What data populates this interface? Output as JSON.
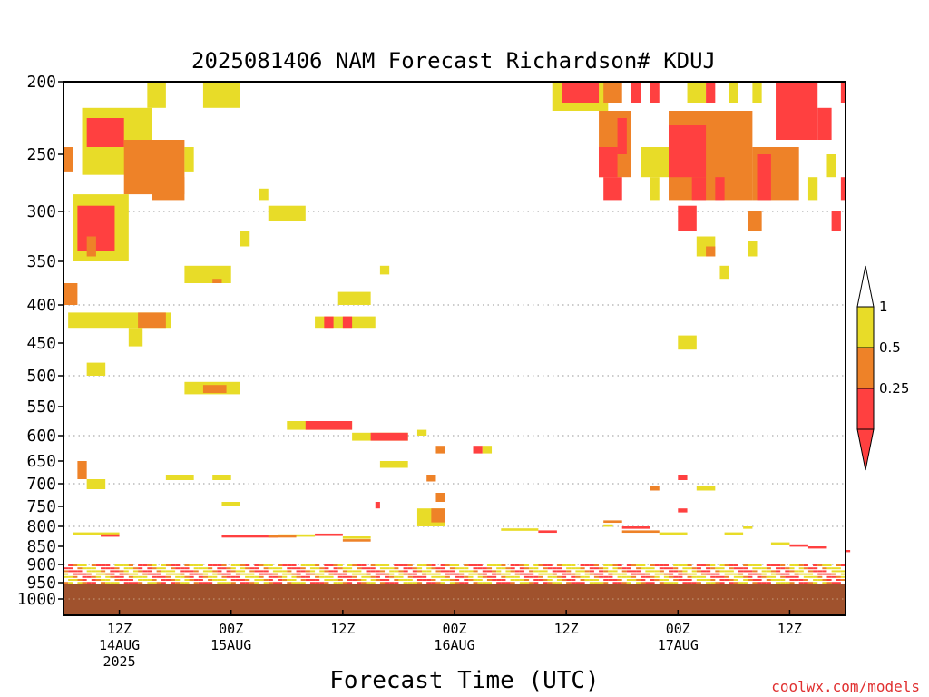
{
  "chart_data": {
    "type": "heatmap",
    "title": "2025081406 NAM Forecast Richardson# KDUJ",
    "xlabel": "Forecast Time (UTC)",
    "credit": "coolwx.com/models",
    "y_axis": {
      "scale": "pressure",
      "range": [
        200,
        1050
      ],
      "ticks": [
        200,
        250,
        300,
        350,
        400,
        450,
        500,
        550,
        600,
        650,
        700,
        750,
        800,
        850,
        900,
        950,
        1000
      ],
      "tick_labels": [
        "200",
        "250",
        "300",
        "350",
        "400",
        "450",
        "500",
        "550",
        "600",
        "650",
        "700",
        "750",
        "800",
        "850",
        "900",
        "950",
        "1000"
      ],
      "gridlines": [
        300,
        400,
        500,
        600,
        700,
        800,
        900,
        1000
      ]
    },
    "x_axis": {
      "unit": "forecast hours from 2025081406",
      "range": [
        0,
        84
      ],
      "ticks": [
        {
          "hour": 6,
          "line1": "12Z",
          "line2": "14AUG",
          "line3": "2025"
        },
        {
          "hour": 18,
          "line1": "00Z",
          "line2": "15AUG",
          "line3": ""
        },
        {
          "hour": 30,
          "line1": "12Z",
          "line2": "",
          "line3": ""
        },
        {
          "hour": 42,
          "line1": "00Z",
          "line2": "16AUG",
          "line3": ""
        },
        {
          "hour": 54,
          "line1": "12Z",
          "line2": "",
          "line3": ""
        },
        {
          "hour": 66,
          "line1": "00Z",
          "line2": "17AUG",
          "line3": ""
        },
        {
          "hour": 78,
          "line1": "12Z",
          "line2": "",
          "line3": ""
        }
      ]
    },
    "colorbar": {
      "levels": [
        {
          "label": "1",
          "color": "#e8dc28"
        },
        {
          "label": "0.5",
          "color": "#ee8228"
        },
        {
          "label": "0.25",
          "color": "#ff4040"
        }
      ],
      "top_cap_color": "#ffffff",
      "bottom_cap_color": "#ff4040",
      "band_colors": [
        "#e8dc28",
        "#ee8228",
        "#ff4040"
      ]
    },
    "terrain": {
      "pressure_top": 955,
      "color": "#a0522d"
    },
    "categories": {
      "y": "#e8dc28",
      "o": "#ee8228",
      "r": "#ff4040"
    },
    "patches": [
      {
        "h0": 9,
        "h1": 11,
        "p0": 200,
        "p1": 218,
        "c": "y"
      },
      {
        "h0": 15,
        "h1": 19,
        "p0": 200,
        "p1": 218,
        "c": "y"
      },
      {
        "h0": 2,
        "h1": 9.5,
        "p0": 218,
        "p1": 268,
        "c": "y"
      },
      {
        "h0": 2.5,
        "h1": 6.5,
        "p0": 225,
        "p1": 245,
        "c": "r"
      },
      {
        "h0": 6.5,
        "h1": 13,
        "p0": 240,
        "p1": 285,
        "c": "o"
      },
      {
        "h0": 9.5,
        "h1": 13,
        "p0": 270,
        "p1": 290,
        "c": "o"
      },
      {
        "h0": 13,
        "h1": 14,
        "p0": 245,
        "p1": 265,
        "c": "y"
      },
      {
        "h0": 0,
        "h1": 1,
        "p0": 245,
        "p1": 265,
        "c": "o"
      },
      {
        "h0": 1,
        "h1": 7,
        "p0": 285,
        "p1": 350,
        "c": "y"
      },
      {
        "h0": 1.5,
        "h1": 5.5,
        "p0": 295,
        "p1": 340,
        "c": "r"
      },
      {
        "h0": 2.5,
        "h1": 3.5,
        "p0": 325,
        "p1": 345,
        "c": "o"
      },
      {
        "h0": 21,
        "h1": 22,
        "p0": 280,
        "p1": 290,
        "c": "y"
      },
      {
        "h0": 22,
        "h1": 26,
        "p0": 295,
        "p1": 310,
        "c": "y"
      },
      {
        "h0": 19,
        "h1": 20,
        "p0": 320,
        "p1": 335,
        "c": "y"
      },
      {
        "h0": 13,
        "h1": 18,
        "p0": 355,
        "p1": 375,
        "c": "y"
      },
      {
        "h0": 16,
        "h1": 17,
        "p0": 370,
        "p1": 375,
        "c": "o"
      },
      {
        "h0": 0,
        "h1": 1.5,
        "p0": 375,
        "p1": 400,
        "c": "o"
      },
      {
        "h0": 29.5,
        "h1": 33,
        "p0": 385,
        "p1": 400,
        "c": "y"
      },
      {
        "h0": 34,
        "h1": 35,
        "p0": 355,
        "p1": 365,
        "c": "y"
      },
      {
        "h0": 0.5,
        "h1": 11.5,
        "p0": 410,
        "p1": 430,
        "c": "y"
      },
      {
        "h0": 8,
        "h1": 11,
        "p0": 410,
        "p1": 430,
        "c": "o"
      },
      {
        "h0": 7,
        "h1": 8.5,
        "p0": 430,
        "p1": 455,
        "c": "y"
      },
      {
        "h0": 27,
        "h1": 33.5,
        "p0": 415,
        "p1": 430,
        "c": "y"
      },
      {
        "h0": 28,
        "h1": 29,
        "p0": 415,
        "p1": 430,
        "c": "r"
      },
      {
        "h0": 30,
        "h1": 31,
        "p0": 415,
        "p1": 430,
        "c": "r"
      },
      {
        "h0": 2.5,
        "h1": 4.5,
        "p0": 480,
        "p1": 500,
        "c": "y"
      },
      {
        "h0": 13,
        "h1": 19,
        "p0": 510,
        "p1": 530,
        "c": "y"
      },
      {
        "h0": 15,
        "h1": 17.5,
        "p0": 515,
        "p1": 528,
        "c": "o"
      },
      {
        "h0": 24,
        "h1": 31,
        "p0": 575,
        "p1": 590,
        "c": "y"
      },
      {
        "h0": 26,
        "h1": 31,
        "p0": 575,
        "p1": 590,
        "c": "r"
      },
      {
        "h0": 31,
        "h1": 37,
        "p0": 595,
        "p1": 610,
        "c": "y"
      },
      {
        "h0": 33,
        "h1": 37,
        "p0": 595,
        "p1": 610,
        "c": "r"
      },
      {
        "h0": 38,
        "h1": 39,
        "p0": 590,
        "p1": 600,
        "c": "y"
      },
      {
        "h0": 34,
        "h1": 37,
        "p0": 650,
        "p1": 665,
        "c": "y"
      },
      {
        "h0": 40,
        "h1": 41,
        "p0": 620,
        "p1": 635,
        "c": "o"
      },
      {
        "h0": 44,
        "h1": 45,
        "p0": 620,
        "p1": 635,
        "c": "r"
      },
      {
        "h0": 45,
        "h1": 46,
        "p0": 620,
        "p1": 635,
        "c": "y"
      },
      {
        "h0": 1.5,
        "h1": 2.5,
        "p0": 650,
        "p1": 690,
        "c": "o"
      },
      {
        "h0": 2.5,
        "h1": 4.5,
        "p0": 690,
        "p1": 712,
        "c": "y"
      },
      {
        "h0": 11,
        "h1": 14,
        "p0": 680,
        "p1": 692,
        "c": "y"
      },
      {
        "h0": 16,
        "h1": 18,
        "p0": 680,
        "p1": 692,
        "c": "y"
      },
      {
        "h0": 17,
        "h1": 19,
        "p0": 740,
        "p1": 750,
        "c": "y"
      },
      {
        "h0": 39,
        "h1": 40,
        "p0": 680,
        "p1": 695,
        "c": "o"
      },
      {
        "h0": 40,
        "h1": 41,
        "p0": 720,
        "p1": 740,
        "c": "o"
      },
      {
        "h0": 38,
        "h1": 41,
        "p0": 755,
        "p1": 800,
        "c": "y"
      },
      {
        "h0": 39.5,
        "h1": 41,
        "p0": 755,
        "p1": 790,
        "c": "o"
      },
      {
        "h0": 33.5,
        "h1": 34,
        "p0": 740,
        "p1": 755,
        "c": "r"
      },
      {
        "h0": 66,
        "h1": 67,
        "p0": 680,
        "p1": 692,
        "c": "r"
      },
      {
        "h0": 63,
        "h1": 64,
        "p0": 705,
        "p1": 715,
        "c": "o"
      },
      {
        "h0": 68,
        "h1": 70,
        "p0": 705,
        "p1": 715,
        "c": "y"
      },
      {
        "h0": 66,
        "h1": 67,
        "p0": 755,
        "p1": 765,
        "c": "r"
      },
      {
        "h0": 66,
        "h1": 68,
        "p0": 440,
        "p1": 460,
        "c": "y"
      },
      {
        "h0": 52.5,
        "h1": 58.5,
        "p0": 200,
        "p1": 220,
        "c": "y"
      },
      {
        "h0": 53.5,
        "h1": 57.5,
        "p0": 200,
        "p1": 215,
        "c": "r"
      },
      {
        "h0": 58,
        "h1": 60,
        "p0": 200,
        "p1": 215,
        "c": "o"
      },
      {
        "h0": 61,
        "h1": 62,
        "p0": 200,
        "p1": 215,
        "c": "r"
      },
      {
        "h0": 63,
        "h1": 64,
        "p0": 200,
        "p1": 215,
        "c": "r"
      },
      {
        "h0": 67,
        "h1": 69,
        "p0": 200,
        "p1": 215,
        "c": "y"
      },
      {
        "h0": 69,
        "h1": 70,
        "p0": 200,
        "p1": 215,
        "c": "r"
      },
      {
        "h0": 71.5,
        "h1": 72.5,
        "p0": 200,
        "p1": 215,
        "c": "y"
      },
      {
        "h0": 74,
        "h1": 75,
        "p0": 200,
        "p1": 215,
        "c": "y"
      },
      {
        "h0": 76.5,
        "h1": 81,
        "p0": 200,
        "p1": 240,
        "c": "r"
      },
      {
        "h0": 81,
        "h1": 82.5,
        "p0": 218,
        "p1": 240,
        "c": "r"
      },
      {
        "h0": 83.5,
        "h1": 84,
        "p0": 200,
        "p1": 215,
        "c": "r"
      },
      {
        "h0": 57.5,
        "h1": 61,
        "p0": 220,
        "p1": 270,
        "c": "o"
      },
      {
        "h0": 57.5,
        "h1": 59.5,
        "p0": 245,
        "p1": 270,
        "c": "r"
      },
      {
        "h0": 59.5,
        "h1": 60.5,
        "p0": 225,
        "p1": 250,
        "c": "r"
      },
      {
        "h0": 58,
        "h1": 60,
        "p0": 270,
        "p1": 290,
        "c": "r"
      },
      {
        "h0": 62,
        "h1": 65,
        "p0": 245,
        "p1": 270,
        "c": "y"
      },
      {
        "h0": 63,
        "h1": 64,
        "p0": 270,
        "p1": 290,
        "c": "y"
      },
      {
        "h0": 65,
        "h1": 74,
        "p0": 220,
        "p1": 290,
        "c": "o"
      },
      {
        "h0": 65,
        "h1": 69,
        "p0": 230,
        "p1": 270,
        "c": "r"
      },
      {
        "h0": 67.5,
        "h1": 69,
        "p0": 270,
        "p1": 290,
        "c": "r"
      },
      {
        "h0": 70,
        "h1": 71,
        "p0": 270,
        "p1": 290,
        "c": "r"
      },
      {
        "h0": 74,
        "h1": 79,
        "p0": 245,
        "p1": 290,
        "c": "o"
      },
      {
        "h0": 74.5,
        "h1": 76,
        "p0": 250,
        "p1": 290,
        "c": "r"
      },
      {
        "h0": 80,
        "h1": 81,
        "p0": 270,
        "p1": 290,
        "c": "y"
      },
      {
        "h0": 82,
        "h1": 83,
        "p0": 250,
        "p1": 270,
        "c": "y"
      },
      {
        "h0": 83.5,
        "h1": 84,
        "p0": 270,
        "p1": 290,
        "c": "r"
      },
      {
        "h0": 66,
        "h1": 68,
        "p0": 295,
        "p1": 320,
        "c": "r"
      },
      {
        "h0": 68,
        "h1": 70,
        "p0": 325,
        "p1": 345,
        "c": "y"
      },
      {
        "h0": 69,
        "h1": 70,
        "p0": 335,
        "p1": 345,
        "c": "o"
      },
      {
        "h0": 73.5,
        "h1": 75,
        "p0": 300,
        "p1": 320,
        "c": "o"
      },
      {
        "h0": 70.5,
        "h1": 71.5,
        "p0": 355,
        "p1": 370,
        "c": "y"
      },
      {
        "h0": 73.5,
        "h1": 74.5,
        "p0": 330,
        "p1": 345,
        "c": "y"
      },
      {
        "h0": 82.5,
        "h1": 83.5,
        "p0": 300,
        "p1": 320,
        "c": "r"
      }
    ],
    "surface_strips": [
      {
        "p": 815,
        "h0": 1,
        "h1": 6,
        "c": "y"
      },
      {
        "p": 820,
        "h0": 4,
        "h1": 6,
        "c": "r"
      },
      {
        "p": 822,
        "h0": 17,
        "h1": 23,
        "c": "r"
      },
      {
        "p": 820,
        "h0": 23,
        "h1": 27,
        "c": "y"
      },
      {
        "p": 818,
        "h0": 27,
        "h1": 30,
        "c": "r"
      },
      {
        "p": 822,
        "h0": 22,
        "h1": 25,
        "c": "o"
      },
      {
        "p": 825,
        "h0": 30,
        "h1": 33,
        "c": "y"
      },
      {
        "p": 832,
        "h0": 30,
        "h1": 33,
        "c": "o"
      },
      {
        "p": 805,
        "h0": 47,
        "h1": 51,
        "c": "y"
      },
      {
        "p": 810,
        "h0": 51,
        "h1": 53,
        "c": "r"
      },
      {
        "p": 795,
        "h0": 58,
        "h1": 59,
        "c": "y"
      },
      {
        "p": 785,
        "h0": 58,
        "h1": 60,
        "c": "o"
      },
      {
        "p": 800,
        "h0": 60,
        "h1": 63,
        "c": "r"
      },
      {
        "p": 810,
        "h0": 60,
        "h1": 64,
        "c": "o"
      },
      {
        "p": 815,
        "h0": 64,
        "h1": 67,
        "c": "y"
      },
      {
        "p": 815,
        "h0": 71,
        "h1": 73,
        "c": "y"
      },
      {
        "p": 800,
        "h0": 73,
        "h1": 74,
        "c": "y"
      },
      {
        "p": 840,
        "h0": 76,
        "h1": 78,
        "c": "y"
      },
      {
        "p": 845,
        "h0": 78,
        "h1": 80,
        "c": "r"
      },
      {
        "p": 850,
        "h0": 80,
        "h1": 82,
        "c": "r"
      },
      {
        "p": 860,
        "h0": 84,
        "h1": 84.5,
        "c": "r"
      }
    ]
  }
}
